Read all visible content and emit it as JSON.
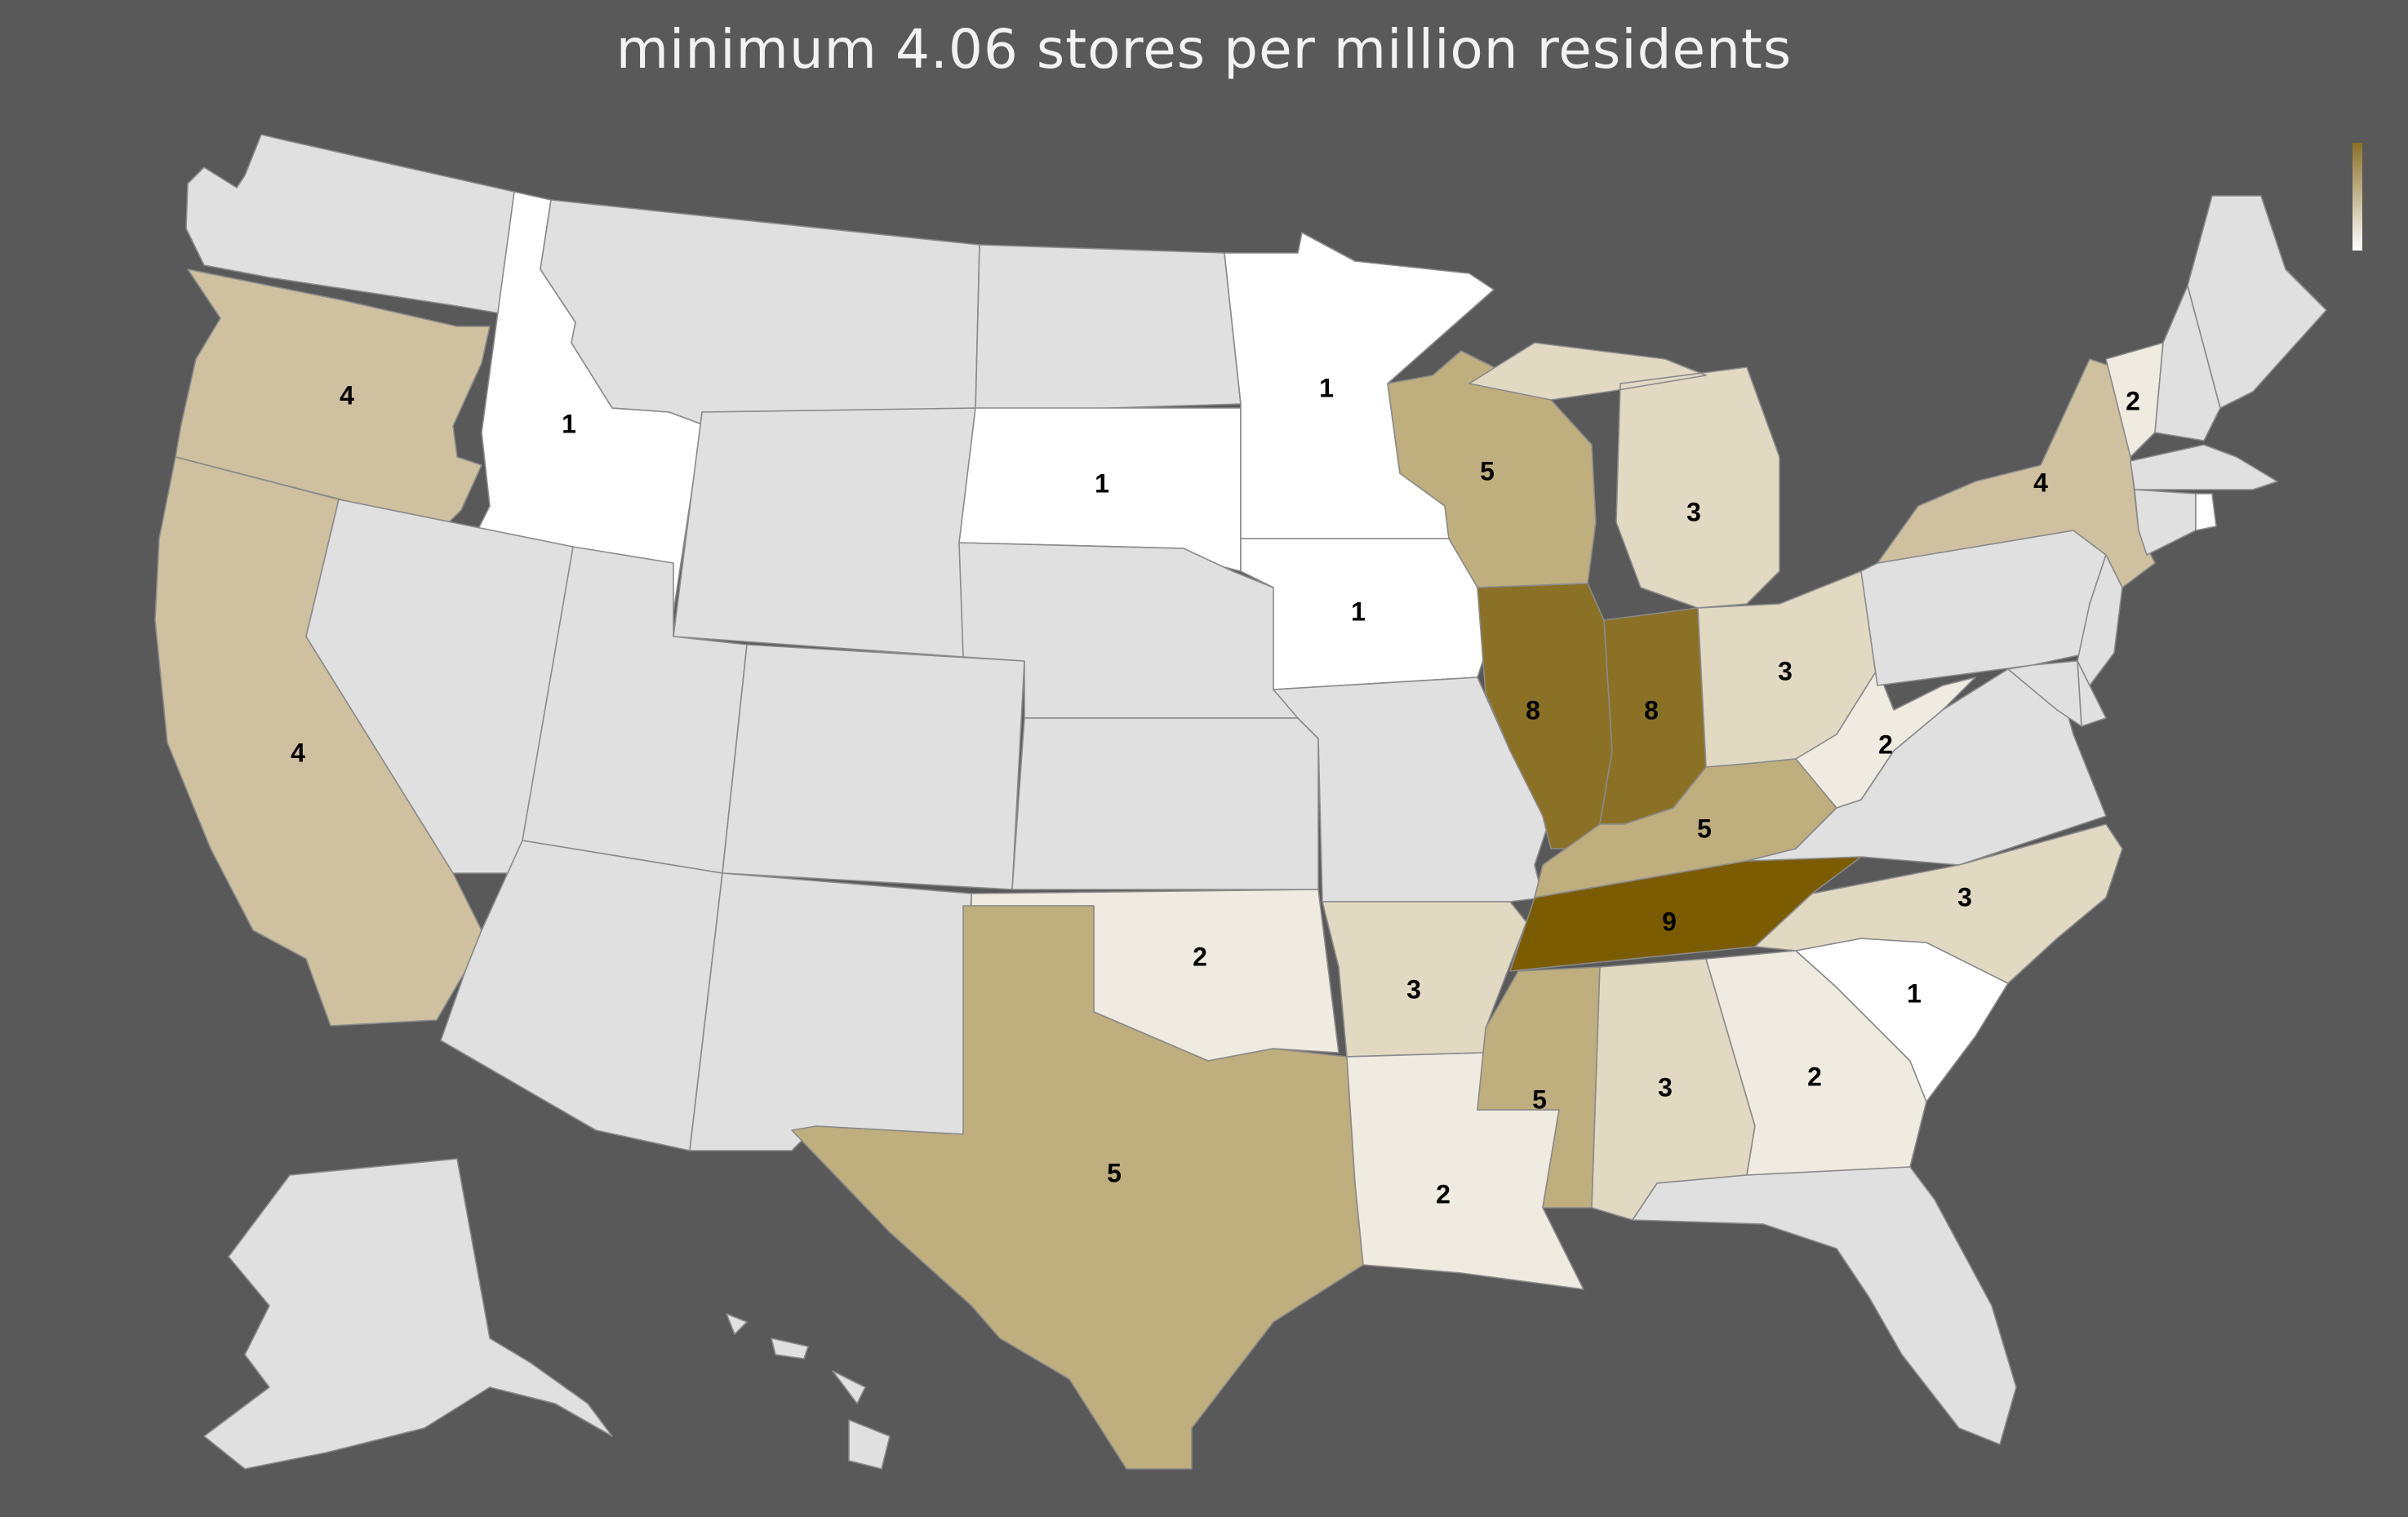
{
  "title": "minimum 4.06 stores per million residents",
  "colors": {
    "background": "#595959",
    "no_data": "#e0e0e0",
    "scale": {
      "1": "#ffffff",
      "2": "#efebe0",
      "3": "#e2d9c3",
      "4": "#cfc19f",
      "5": "#bfae7e",
      "8": "#8b7125",
      "9": "#7b5c00"
    }
  },
  "legend": {
    "gradient_top": "#8b7125",
    "gradient_bottom": "#ffffff",
    "placement": "top-right"
  },
  "states": [
    {
      "code": "WA",
      "value": null
    },
    {
      "code": "OR",
      "value": 4
    },
    {
      "code": "CA",
      "value": 4
    },
    {
      "code": "ID",
      "value": 1
    },
    {
      "code": "NV",
      "value": null
    },
    {
      "code": "MT",
      "value": null
    },
    {
      "code": "WY",
      "value": null
    },
    {
      "code": "UT",
      "value": null
    },
    {
      "code": "AZ",
      "value": null
    },
    {
      "code": "CO",
      "value": null
    },
    {
      "code": "NM",
      "value": null
    },
    {
      "code": "ND",
      "value": null
    },
    {
      "code": "SD",
      "value": 1
    },
    {
      "code": "NE",
      "value": null
    },
    {
      "code": "KS",
      "value": null
    },
    {
      "code": "OK",
      "value": 2
    },
    {
      "code": "TX",
      "value": 5
    },
    {
      "code": "MN",
      "value": 1
    },
    {
      "code": "IA",
      "value": 1
    },
    {
      "code": "MO",
      "value": null
    },
    {
      "code": "AR",
      "value": 3
    },
    {
      "code": "LA",
      "value": 2
    },
    {
      "code": "WI",
      "value": 5
    },
    {
      "code": "IL",
      "value": 8
    },
    {
      "code": "IN",
      "value": 8
    },
    {
      "code": "MI",
      "value": 3
    },
    {
      "code": "OH",
      "value": 3
    },
    {
      "code": "KY",
      "value": 5
    },
    {
      "code": "TN",
      "value": 9
    },
    {
      "code": "MS",
      "value": 5
    },
    {
      "code": "AL",
      "value": 3
    },
    {
      "code": "GA",
      "value": 2
    },
    {
      "code": "FL",
      "value": null
    },
    {
      "code": "SC",
      "value": 1
    },
    {
      "code": "NC",
      "value": 3
    },
    {
      "code": "VA",
      "value": null
    },
    {
      "code": "WV",
      "value": 2
    },
    {
      "code": "PA",
      "value": null
    },
    {
      "code": "NY",
      "value": 4
    },
    {
      "code": "VT",
      "value": 2
    },
    {
      "code": "NH",
      "value": null
    },
    {
      "code": "ME",
      "value": null
    },
    {
      "code": "MA",
      "value": null
    },
    {
      "code": "CT",
      "value": null
    },
    {
      "code": "RI",
      "value": 1
    },
    {
      "code": "NJ",
      "value": null
    },
    {
      "code": "DE",
      "value": null
    },
    {
      "code": "MD",
      "value": null
    },
    {
      "code": "AK",
      "value": null
    },
    {
      "code": "HI",
      "value": null
    }
  ]
}
